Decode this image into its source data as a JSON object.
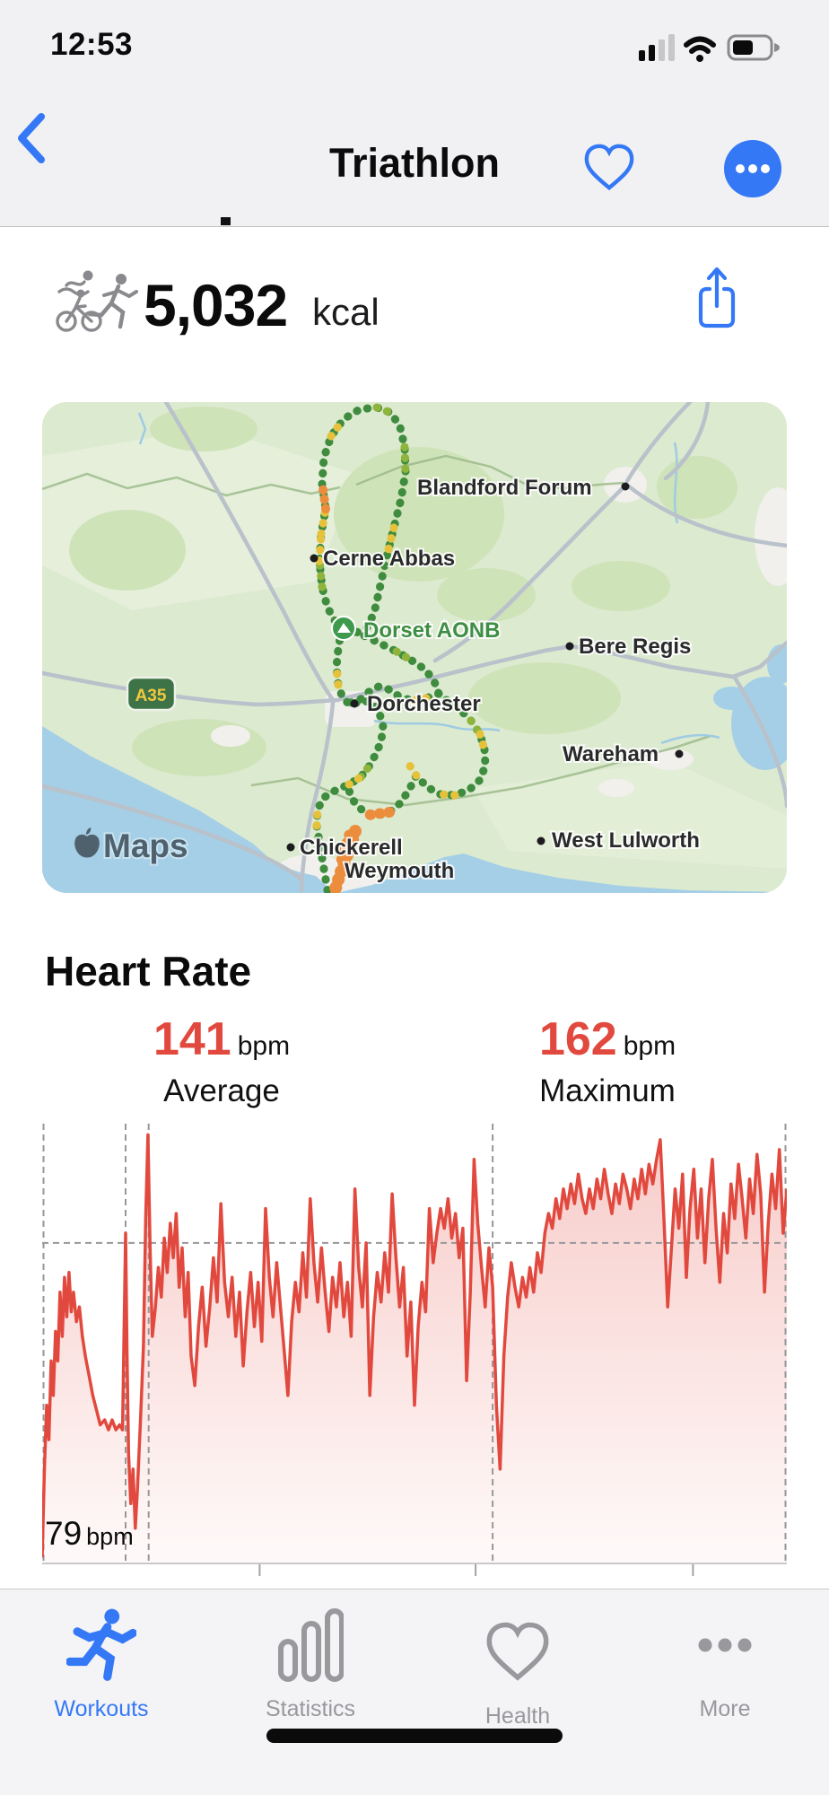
{
  "status_bar": {
    "time": "12:53",
    "battery_level_percent": 45,
    "cellular_bars": "2 of 4",
    "wifi": "on"
  },
  "nav": {
    "title": "Triathlon",
    "back_icon": "chevron-left",
    "favorite_icon": "heart-outline",
    "more_icon": "ellipsis-circle",
    "accent_color": "#3478f6"
  },
  "summary": {
    "activity": "triathlon",
    "calories": "5,032",
    "unit": "kcal"
  },
  "map": {
    "attribution": "Maps",
    "land_color": "#dcead0",
    "water_color": "#a5cfe6",
    "route_colors": {
      "slow": "#ec8d3d",
      "medium": "#e6c23c",
      "fast": "#3f8c3f",
      "mixed": "#8fb43c"
    },
    "road_badge": "A35",
    "area_badge": "Dorset AONB",
    "labels": [
      {
        "name": "Blandford Forum"
      },
      {
        "name": "Cerne Abbas"
      },
      {
        "name": "Bere Regis"
      },
      {
        "name": "Dorchester"
      },
      {
        "name": "Wareham"
      },
      {
        "name": "Chickerell"
      },
      {
        "name": "West Lulworth"
      },
      {
        "name": "Weymouth"
      }
    ]
  },
  "heart_rate": {
    "title": "Heart Rate",
    "average": {
      "value": "141",
      "unit": "bpm",
      "label": "Average"
    },
    "maximum": {
      "value": "162",
      "unit": "bpm",
      "label": "Maximum"
    },
    "minimum": {
      "value": "79",
      "unit": "bpm"
    }
  },
  "chart_data": {
    "type": "area",
    "title": "Heart Rate",
    "ylabel": "bpm",
    "ylim": [
      76,
      166
    ],
    "average": 141,
    "maximum": 162,
    "minimum": 79,
    "line_color": "#e2493e",
    "grid": "dashed segment markers and average line",
    "segment_markers": [
      0.0,
      0.112,
      0.143,
      0.605,
      1.0
    ],
    "x_ticks": [
      0.292,
      0.582,
      0.874
    ],
    "series": [
      [
        0.0,
        77
      ],
      [
        0.003,
        95
      ],
      [
        0.006,
        108
      ],
      [
        0.009,
        101
      ],
      [
        0.012,
        117
      ],
      [
        0.015,
        110
      ],
      [
        0.018,
        123
      ],
      [
        0.021,
        117
      ],
      [
        0.024,
        131
      ],
      [
        0.027,
        122
      ],
      [
        0.03,
        134
      ],
      [
        0.033,
        126
      ],
      [
        0.036,
        135
      ],
      [
        0.039,
        127
      ],
      [
        0.042,
        131
      ],
      [
        0.046,
        125
      ],
      [
        0.05,
        128
      ],
      [
        0.054,
        122
      ],
      [
        0.058,
        118
      ],
      [
        0.063,
        114
      ],
      [
        0.068,
        110
      ],
      [
        0.073,
        107
      ],
      [
        0.078,
        104
      ],
      [
        0.084,
        105
      ],
      [
        0.089,
        103
      ],
      [
        0.094,
        105
      ],
      [
        0.099,
        103
      ],
      [
        0.104,
        104
      ],
      [
        0.108,
        103
      ],
      [
        0.112,
        143
      ],
      [
        0.114,
        118
      ],
      [
        0.116,
        98
      ],
      [
        0.119,
        88
      ],
      [
        0.122,
        95
      ],
      [
        0.125,
        83
      ],
      [
        0.128,
        91
      ],
      [
        0.132,
        105
      ],
      [
        0.136,
        120
      ],
      [
        0.139,
        146
      ],
      [
        0.142,
        163
      ],
      [
        0.145,
        140
      ],
      [
        0.148,
        122
      ],
      [
        0.152,
        128
      ],
      [
        0.156,
        136
      ],
      [
        0.16,
        130
      ],
      [
        0.164,
        142
      ],
      [
        0.168,
        135
      ],
      [
        0.172,
        145
      ],
      [
        0.176,
        138
      ],
      [
        0.18,
        147
      ],
      [
        0.184,
        132
      ],
      [
        0.188,
        140
      ],
      [
        0.192,
        126
      ],
      [
        0.196,
        135
      ],
      [
        0.2,
        118
      ],
      [
        0.205,
        112
      ],
      [
        0.21,
        124
      ],
      [
        0.215,
        132
      ],
      [
        0.22,
        120
      ],
      [
        0.225,
        128
      ],
      [
        0.23,
        138
      ],
      [
        0.235,
        129
      ],
      [
        0.24,
        149
      ],
      [
        0.245,
        133
      ],
      [
        0.25,
        126
      ],
      [
        0.255,
        134
      ],
      [
        0.26,
        122
      ],
      [
        0.265,
        131
      ],
      [
        0.27,
        116
      ],
      [
        0.275,
        127
      ],
      [
        0.28,
        135
      ],
      [
        0.285,
        124
      ],
      [
        0.29,
        133
      ],
      [
        0.295,
        121
      ],
      [
        0.3,
        148
      ],
      [
        0.305,
        134
      ],
      [
        0.31,
        126
      ],
      [
        0.315,
        137
      ],
      [
        0.32,
        128
      ],
      [
        0.325,
        119
      ],
      [
        0.33,
        110
      ],
      [
        0.335,
        125
      ],
      [
        0.34,
        133
      ],
      [
        0.345,
        127
      ],
      [
        0.35,
        139
      ],
      [
        0.355,
        130
      ],
      [
        0.36,
        150
      ],
      [
        0.365,
        137
      ],
      [
        0.37,
        129
      ],
      [
        0.375,
        140
      ],
      [
        0.38,
        131
      ],
      [
        0.385,
        123
      ],
      [
        0.39,
        134
      ],
      [
        0.395,
        128
      ],
      [
        0.4,
        137
      ],
      [
        0.405,
        126
      ],
      [
        0.41,
        133
      ],
      [
        0.415,
        122
      ],
      [
        0.42,
        152
      ],
      [
        0.425,
        136
      ],
      [
        0.43,
        128
      ],
      [
        0.435,
        141
      ],
      [
        0.44,
        110
      ],
      [
        0.445,
        126
      ],
      [
        0.45,
        135
      ],
      [
        0.455,
        129
      ],
      [
        0.46,
        139
      ],
      [
        0.465,
        131
      ],
      [
        0.47,
        151
      ],
      [
        0.475,
        138
      ],
      [
        0.48,
        128
      ],
      [
        0.485,
        136
      ],
      [
        0.49,
        118
      ],
      [
        0.495,
        129
      ],
      [
        0.5,
        108
      ],
      [
        0.505,
        124
      ],
      [
        0.51,
        133
      ],
      [
        0.515,
        127
      ],
      [
        0.52,
        148
      ],
      [
        0.525,
        137
      ],
      [
        0.53,
        143
      ],
      [
        0.535,
        148
      ],
      [
        0.54,
        144
      ],
      [
        0.545,
        150
      ],
      [
        0.55,
        142
      ],
      [
        0.555,
        147
      ],
      [
        0.56,
        138
      ],
      [
        0.565,
        144
      ],
      [
        0.57,
        113
      ],
      [
        0.575,
        131
      ],
      [
        0.58,
        158
      ],
      [
        0.585,
        145
      ],
      [
        0.59,
        136
      ],
      [
        0.595,
        128
      ],
      [
        0.6,
        140
      ],
      [
        0.605,
        132
      ],
      [
        0.61,
        108
      ],
      [
        0.615,
        95
      ],
      [
        0.62,
        118
      ],
      [
        0.625,
        130
      ],
      [
        0.63,
        137
      ],
      [
        0.635,
        132
      ],
      [
        0.64,
        128
      ],
      [
        0.645,
        134
      ],
      [
        0.65,
        130
      ],
      [
        0.655,
        136
      ],
      [
        0.66,
        131
      ],
      [
        0.665,
        139
      ],
      [
        0.67,
        135
      ],
      [
        0.675,
        143
      ],
      [
        0.68,
        147
      ],
      [
        0.685,
        144
      ],
      [
        0.69,
        150
      ],
      [
        0.695,
        146
      ],
      [
        0.7,
        152
      ],
      [
        0.705,
        148
      ],
      [
        0.71,
        153
      ],
      [
        0.715,
        149
      ],
      [
        0.72,
        155
      ],
      [
        0.725,
        150
      ],
      [
        0.73,
        147
      ],
      [
        0.735,
        152
      ],
      [
        0.74,
        148
      ],
      [
        0.745,
        154
      ],
      [
        0.75,
        150
      ],
      [
        0.755,
        156
      ],
      [
        0.76,
        151
      ],
      [
        0.765,
        147
      ],
      [
        0.77,
        153
      ],
      [
        0.775,
        149
      ],
      [
        0.78,
        155
      ],
      [
        0.785,
        152
      ],
      [
        0.79,
        148
      ],
      [
        0.795,
        154
      ],
      [
        0.8,
        150
      ],
      [
        0.805,
        156
      ],
      [
        0.81,
        151
      ],
      [
        0.815,
        157
      ],
      [
        0.82,
        153
      ],
      [
        0.825,
        158
      ],
      [
        0.83,
        162
      ],
      [
        0.835,
        146
      ],
      [
        0.84,
        128
      ],
      [
        0.845,
        140
      ],
      [
        0.85,
        152
      ],
      [
        0.855,
        144
      ],
      [
        0.86,
        155
      ],
      [
        0.865,
        134
      ],
      [
        0.87,
        148
      ],
      [
        0.875,
        156
      ],
      [
        0.88,
        142
      ],
      [
        0.885,
        152
      ],
      [
        0.89,
        137
      ],
      [
        0.895,
        150
      ],
      [
        0.9,
        158
      ],
      [
        0.905,
        144
      ],
      [
        0.91,
        133
      ],
      [
        0.915,
        147
      ],
      [
        0.92,
        139
      ],
      [
        0.925,
        153
      ],
      [
        0.93,
        146
      ],
      [
        0.935,
        157
      ],
      [
        0.94,
        150
      ],
      [
        0.945,
        142
      ],
      [
        0.95,
        154
      ],
      [
        0.955,
        147
      ],
      [
        0.96,
        159
      ],
      [
        0.965,
        151
      ],
      [
        0.97,
        131
      ],
      [
        0.975,
        145
      ],
      [
        0.98,
        155
      ],
      [
        0.985,
        148
      ],
      [
        0.99,
        160
      ],
      [
        0.995,
        143
      ],
      [
        1.0,
        152
      ]
    ]
  },
  "tab_bar": {
    "items": [
      {
        "label": "Workouts",
        "icon": "runner",
        "active": true
      },
      {
        "label": "Statistics",
        "icon": "bar-chart",
        "active": false
      },
      {
        "label": "Health",
        "icon": "heart",
        "active": false
      },
      {
        "label": "More",
        "icon": "ellipsis",
        "active": false
      }
    ]
  }
}
